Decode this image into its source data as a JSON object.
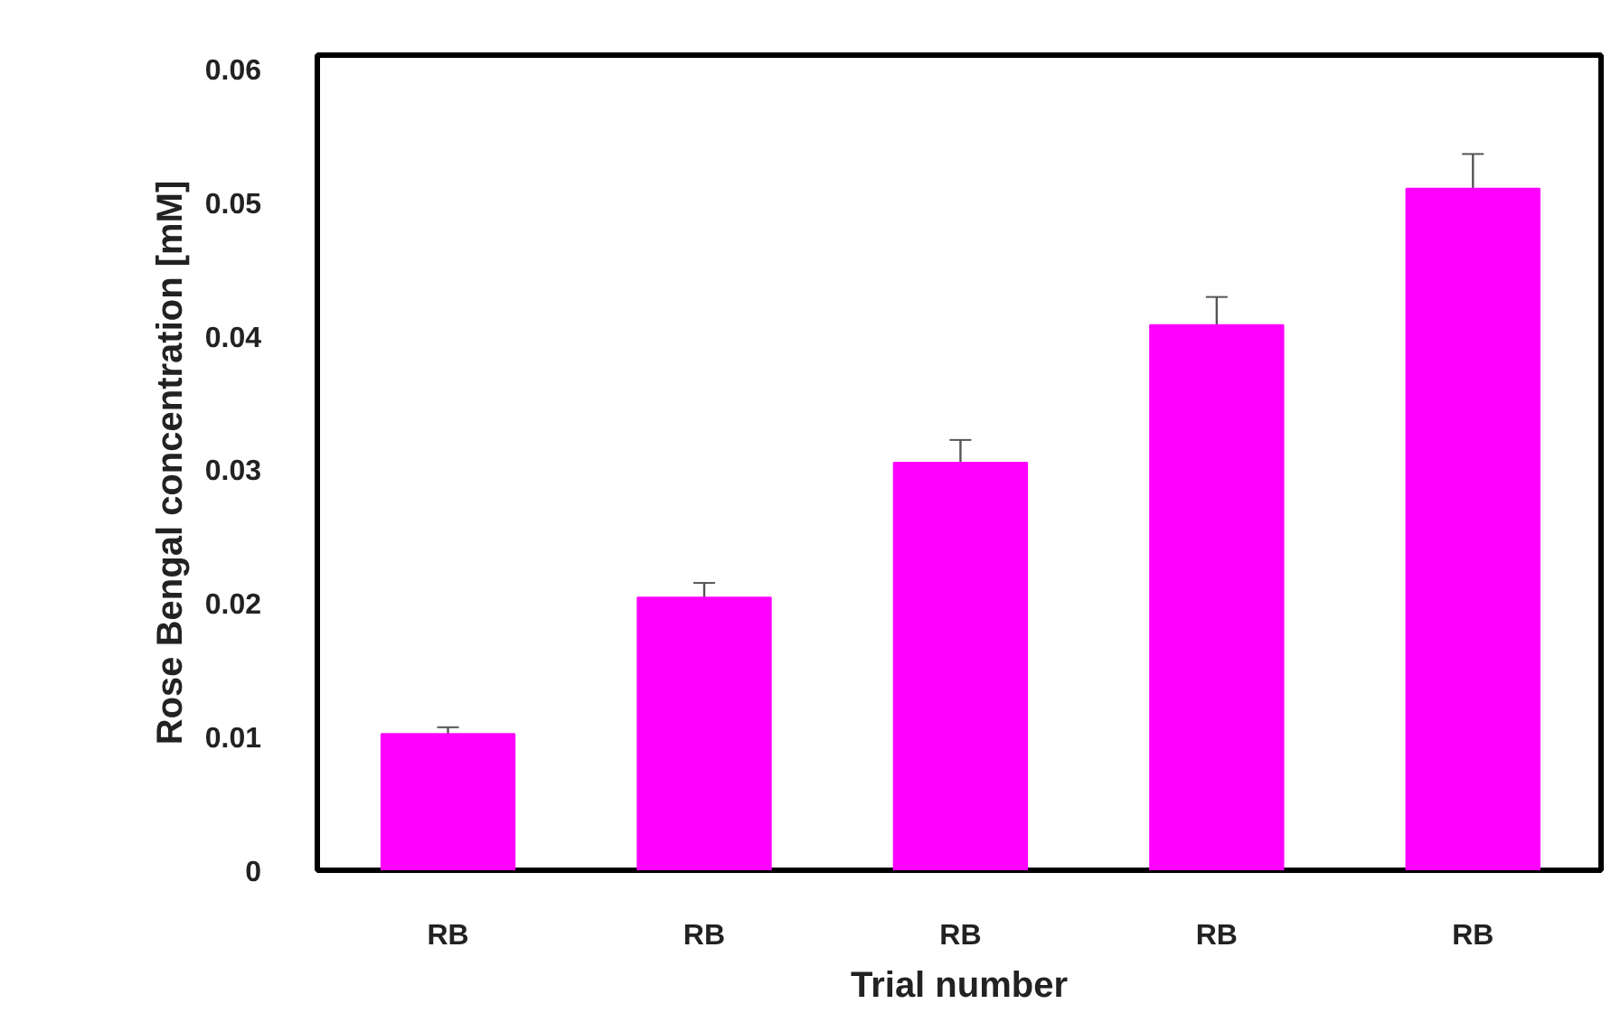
{
  "chart_data": {
    "type": "bar",
    "xlabel": "Trial number",
    "ylabel": "Rose Bengal concentration [mM]",
    "categories": [
      "RB",
      "RB",
      "RB",
      "RB",
      "RB"
    ],
    "values": [
      0.0102,
      0.0204,
      0.0305,
      0.0408,
      0.051
    ],
    "errors": [
      0.0005,
      0.0011,
      0.0017,
      0.0021,
      0.0026
    ],
    "color": "#ff00ff",
    "ylim": [
      0,
      0.061
    ],
    "yticks": [
      0,
      0.01,
      0.02,
      0.03,
      0.04,
      0.05,
      0.06
    ],
    "grid": false
  }
}
